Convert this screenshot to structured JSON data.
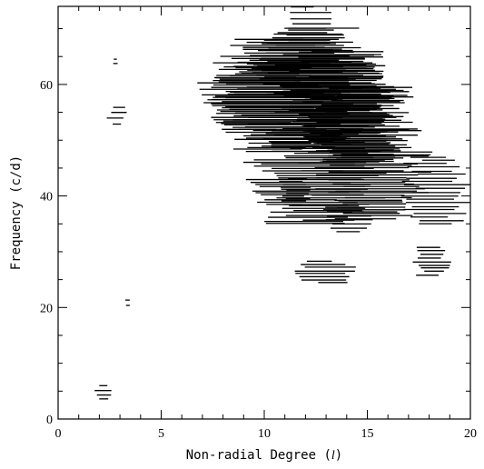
{
  "chart_data": {
    "type": "scatter",
    "title": "",
    "xlabel": "Non-radial Degree (l)",
    "xlabel_parts": {
      "before": "Non-radial Degree (",
      "symbol": "l",
      "after": ")"
    },
    "ylabel": "Frequency (c/d)",
    "xlim": [
      0,
      20
    ],
    "ylim": [
      0,
      74
    ],
    "x_ticks": [
      0,
      5,
      10,
      15,
      20
    ],
    "x_tick_labels": [
      "0",
      "5",
      "10",
      "15",
      "20"
    ],
    "y_ticks": [
      0,
      20,
      40,
      60
    ],
    "y_tick_labels": [
      "0",
      "20",
      "40",
      "60"
    ],
    "grid": false,
    "legend": false,
    "mark_color": "#000000",
    "mark_style": "short horizontal dashes",
    "clusters": [
      {
        "x_center": 2.2,
        "y_min": 3.5,
        "y_max": 6.0,
        "half_width": 0.35,
        "count": 4
      },
      {
        "x_center": 3.4,
        "y_min": 20.3,
        "y_max": 21.3,
        "half_width": 0.18,
        "count": 2
      },
      {
        "x_center": 2.85,
        "y_min": 53.0,
        "y_max": 55.8,
        "half_width": 0.4,
        "count": 4
      },
      {
        "x_center": 2.75,
        "y_min": 63.8,
        "y_max": 64.6,
        "half_width": 0.15,
        "count": 2
      },
      {
        "x_center": 13.0,
        "y_min": 24.5,
        "y_max": 28.2,
        "half_width": 1.3,
        "count": 8
      },
      {
        "x_center": 18.1,
        "y_min": 25.8,
        "y_max": 30.7,
        "half_width": 0.75,
        "count": 9
      },
      {
        "x_center": 18.2,
        "y_min": 35.0,
        "y_max": 47.0,
        "half_width": 1.4,
        "count": 20
      },
      {
        "x_center": 14.2,
        "y_min": 33.5,
        "y_max": 38.5,
        "half_width": 1.0,
        "count": 8
      },
      {
        "x_center": 12.5,
        "y_min": 35.0,
        "y_max": 52.0,
        "half_width": 2.6,
        "count": 44
      },
      {
        "x_center": 15.0,
        "y_min": 36.0,
        "y_max": 52.0,
        "half_width": 2.4,
        "count": 40
      },
      {
        "x_center": 11.5,
        "y_min": 38.5,
        "y_max": 43.0,
        "half_width": 0.7,
        "count": 10
      },
      {
        "x_center": 10.0,
        "y_min": 52.0,
        "y_max": 64.0,
        "half_width": 2.5,
        "count": 30
      },
      {
        "x_center": 11.0,
        "y_min": 48.0,
        "y_max": 68.0,
        "half_width": 2.8,
        "count": 60
      },
      {
        "x_center": 13.5,
        "y_min": 50.0,
        "y_max": 66.0,
        "half_width": 2.6,
        "count": 55
      },
      {
        "x_center": 12.2,
        "y_min": 58.0,
        "y_max": 70.0,
        "half_width": 2.3,
        "count": 40
      },
      {
        "x_center": 14.5,
        "y_min": 46.0,
        "y_max": 60.0,
        "half_width": 2.2,
        "count": 40
      },
      {
        "x_center": 12.0,
        "y_min": 69.0,
        "y_max": 73.8,
        "half_width": 1.0,
        "count": 6
      }
    ]
  }
}
